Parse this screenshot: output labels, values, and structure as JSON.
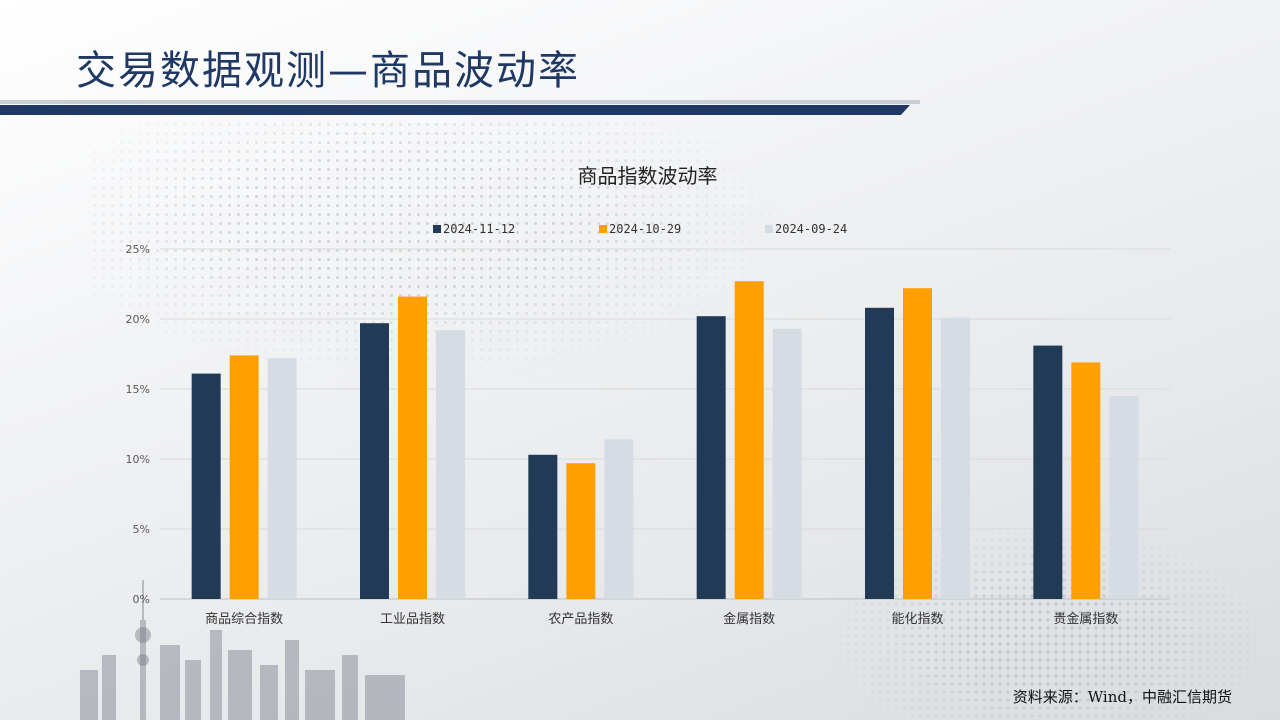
{
  "page": {
    "title": "交易数据观测—商品波动率",
    "source": "资料来源：Wind，中融汇信期货"
  },
  "colors": {
    "brand_navy": "#1f3864",
    "series": [
      "#213a56",
      "#ffa000",
      "#d6dce4"
    ]
  },
  "chart_data": {
    "type": "bar",
    "title": "商品指数波动率",
    "categories": [
      "商品综合指数",
      "工业品指数",
      "农产品指数",
      "金属指数",
      "能化指数",
      "贵金属指数"
    ],
    "series": [
      {
        "name": "2024-11-12",
        "values": [
          16.1,
          19.7,
          10.3,
          20.2,
          20.8,
          18.1
        ]
      },
      {
        "name": "2024-10-29",
        "values": [
          17.4,
          21.6,
          9.7,
          22.7,
          22.2,
          16.9
        ]
      },
      {
        "name": "2024-09-24",
        "values": [
          17.2,
          19.2,
          11.4,
          19.3,
          20.1,
          14.5
        ]
      }
    ],
    "ylim": [
      0,
      25
    ],
    "yticks": [
      0,
      5,
      10,
      15,
      20,
      25
    ],
    "ytick_labels": [
      "0%",
      "5%",
      "10%",
      "15%",
      "20%",
      "25%"
    ],
    "grid": true,
    "legend": "top"
  }
}
